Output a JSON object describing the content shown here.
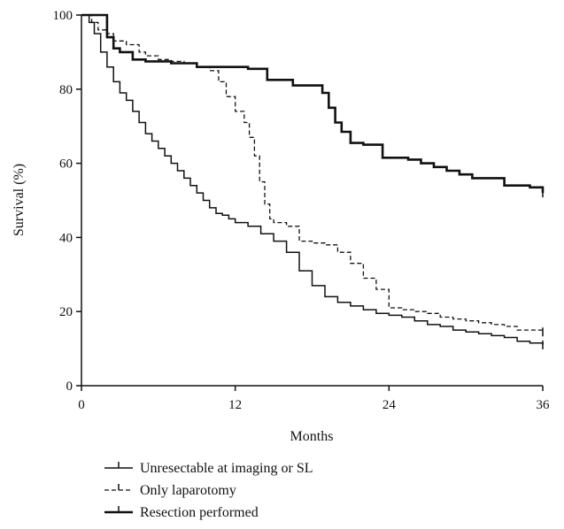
{
  "chart_data": {
    "type": "line",
    "title": "",
    "xlabel": "Months",
    "ylabel": "Survival (%)",
    "xlim": [
      0,
      36
    ],
    "ylim": [
      0,
      100
    ],
    "x_ticks": [
      0,
      12,
      24,
      36
    ],
    "y_ticks": [
      0,
      20,
      40,
      60,
      80,
      100
    ],
    "grid": false,
    "legend_position": "bottom-left",
    "series": [
      {
        "name": "Unresectable at imaging or SL",
        "style": "solid-thin",
        "color": "#111111",
        "points": [
          [
            0,
            100
          ],
          [
            0.6,
            98
          ],
          [
            1,
            95
          ],
          [
            1.5,
            90
          ],
          [
            2,
            86
          ],
          [
            2.5,
            82
          ],
          [
            3,
            79
          ],
          [
            3.5,
            77
          ],
          [
            4,
            74
          ],
          [
            4.5,
            71
          ],
          [
            5,
            68
          ],
          [
            5.5,
            66
          ],
          [
            6,
            64
          ],
          [
            6.5,
            62
          ],
          [
            7,
            60
          ],
          [
            7.5,
            58
          ],
          [
            8,
            56
          ],
          [
            8.5,
            54
          ],
          [
            9,
            52
          ],
          [
            9.5,
            50
          ],
          [
            10,
            48
          ],
          [
            10.5,
            46.5
          ],
          [
            11,
            46
          ],
          [
            11.5,
            45
          ],
          [
            12,
            44
          ],
          [
            13,
            43
          ],
          [
            14,
            41
          ],
          [
            15,
            39
          ],
          [
            16,
            36
          ],
          [
            17,
            31
          ],
          [
            18,
            27
          ],
          [
            19,
            24
          ],
          [
            20,
            22.5
          ],
          [
            21,
            21.5
          ],
          [
            22,
            20.5
          ],
          [
            23,
            19.5
          ],
          [
            24,
            19
          ],
          [
            25,
            18.5
          ],
          [
            26,
            17.5
          ],
          [
            27,
            16.5
          ],
          [
            28,
            16
          ],
          [
            29,
            15
          ],
          [
            30,
            14.5
          ],
          [
            31,
            14
          ],
          [
            32,
            13.5
          ],
          [
            33,
            13
          ],
          [
            34,
            12
          ],
          [
            35,
            11.5
          ],
          [
            36,
            11
          ]
        ]
      },
      {
        "name": "Only laparotomy",
        "style": "dashed",
        "color": "#111111",
        "points": [
          [
            0,
            100
          ],
          [
            0.8,
            98
          ],
          [
            1.3,
            96
          ],
          [
            2,
            95
          ],
          [
            2.5,
            93
          ],
          [
            3.5,
            92
          ],
          [
            4.5,
            90
          ],
          [
            5,
            89
          ],
          [
            6,
            88
          ],
          [
            7,
            87.5
          ],
          [
            8,
            87
          ],
          [
            9,
            86
          ],
          [
            10,
            85
          ],
          [
            10.7,
            82
          ],
          [
            11.3,
            78
          ],
          [
            12,
            74
          ],
          [
            12.7,
            71
          ],
          [
            13.1,
            67
          ],
          [
            13.5,
            62
          ],
          [
            13.9,
            55
          ],
          [
            14.3,
            49
          ],
          [
            14.7,
            45
          ],
          [
            15,
            44
          ],
          [
            16,
            43
          ],
          [
            17,
            39
          ],
          [
            18,
            38.5
          ],
          [
            19,
            38
          ],
          [
            20,
            36
          ],
          [
            21,
            33
          ],
          [
            22,
            29
          ],
          [
            23,
            26
          ],
          [
            24,
            21
          ],
          [
            25,
            20.5
          ],
          [
            26,
            20
          ],
          [
            27,
            19.5
          ],
          [
            28,
            18.5
          ],
          [
            29,
            18
          ],
          [
            30,
            17.5
          ],
          [
            31,
            17
          ],
          [
            32,
            16.5
          ],
          [
            33,
            16
          ],
          [
            34,
            15
          ],
          [
            35,
            15
          ],
          [
            36,
            14.5
          ]
        ]
      },
      {
        "name": "Resection performed",
        "style": "solid-thick",
        "color": "#111111",
        "points": [
          [
            0,
            100
          ],
          [
            1.5,
            100
          ],
          [
            2,
            94
          ],
          [
            2.5,
            91
          ],
          [
            3,
            90
          ],
          [
            4,
            88
          ],
          [
            5,
            87.5
          ],
          [
            6,
            87.5
          ],
          [
            7,
            87
          ],
          [
            8,
            87
          ],
          [
            9,
            86
          ],
          [
            10,
            86
          ],
          [
            11,
            86
          ],
          [
            12,
            86
          ],
          [
            13,
            85.5
          ],
          [
            14,
            85.5
          ],
          [
            14.5,
            82.5
          ],
          [
            16,
            82.5
          ],
          [
            16.5,
            81
          ],
          [
            18,
            81
          ],
          [
            18.8,
            79
          ],
          [
            19.3,
            75
          ],
          [
            19.8,
            71
          ],
          [
            20.3,
            68.5
          ],
          [
            21,
            65.5
          ],
          [
            22,
            65
          ],
          [
            23,
            65
          ],
          [
            23.5,
            61.5
          ],
          [
            24,
            61.5
          ],
          [
            25.5,
            61
          ],
          [
            26.5,
            60
          ],
          [
            27.5,
            59
          ],
          [
            28.5,
            58
          ],
          [
            29.5,
            57
          ],
          [
            30.5,
            56
          ],
          [
            32,
            56
          ],
          [
            33,
            54
          ],
          [
            34,
            54
          ],
          [
            35,
            53.5
          ],
          [
            36,
            52
          ]
        ]
      }
    ]
  }
}
